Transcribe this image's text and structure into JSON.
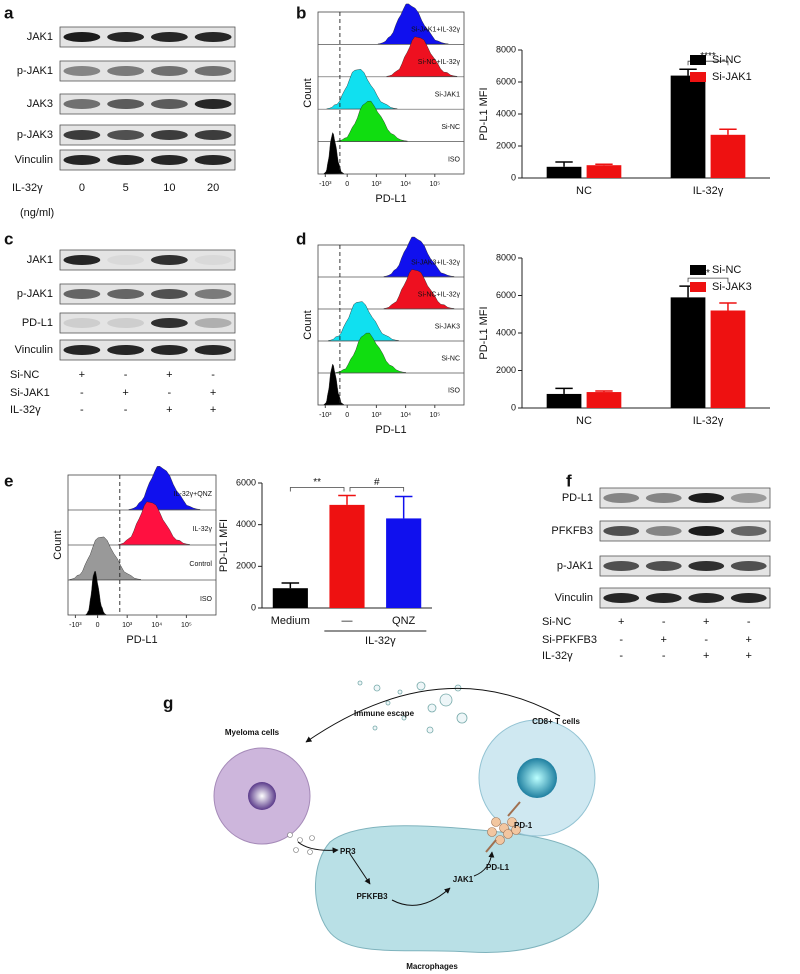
{
  "panels": {
    "a": {
      "label": "a",
      "blot_rows": [
        "JAK1",
        "p-JAK1",
        "JAK3",
        "p-JAK3",
        "Vinculin"
      ],
      "treatment": "IL-32γ",
      "doses": [
        "0",
        "5",
        "10",
        "20"
      ],
      "unit": "(ng/ml)"
    },
    "b": {
      "label": "b",
      "flow": {
        "row_labels": [
          "Si-JAK1+IL-32γ",
          "Si-NC+IL-32γ",
          "Si-JAK1",
          "Si-NC",
          "ISO"
        ],
        "colors": [
          "#1010ee",
          "#ee1020",
          "#10e0f0",
          "#10dd10",
          "#000000"
        ],
        "xticks": [
          "-10³",
          "0",
          "10³",
          "10⁴",
          "10⁵"
        ],
        "xlabel": "PD-L1",
        "ylabel": "Count"
      }
    },
    "c": {
      "label": "c",
      "blot_rows": [
        "JAK1",
        "p-JAK1",
        "PD-L1",
        "Vinculin"
      ],
      "conditions": [
        {
          "name": "Si-NC",
          "signs": [
            "+",
            "-",
            "+",
            "-"
          ]
        },
        {
          "name": "Si-JAK1",
          "signs": [
            "-",
            "+",
            "-",
            "+"
          ]
        },
        {
          "name": "IL-32γ",
          "signs": [
            "-",
            "-",
            "+",
            "+"
          ]
        }
      ]
    },
    "d": {
      "label": "d",
      "flow": {
        "row_labels": [
          "Si-JAK3+IL-32γ",
          "Si-NC+IL-32γ",
          "Si-JAK3",
          "Si-NC",
          "ISO"
        ],
        "colors": [
          "#1010ee",
          "#ee1020",
          "#10e0f0",
          "#10dd10",
          "#000000"
        ],
        "xticks": [
          "-10³",
          "0",
          "10³",
          "10⁴",
          "10⁵"
        ],
        "xlabel": "PD-L1",
        "ylabel": "Count"
      }
    },
    "e": {
      "label": "e",
      "flow": {
        "row_labels": [
          "IL-32γ+QNZ",
          "IL-32γ",
          "Control",
          "ISO"
        ],
        "colors": [
          "#1010ee",
          "#ff1040",
          "#999999",
          "#000000"
        ],
        "xticks": [
          "-10³",
          "0",
          "10³",
          "10⁴",
          "10⁵"
        ],
        "xlabel": "PD-L1",
        "ylabel": "Count"
      }
    },
    "f": {
      "label": "f",
      "blot_rows": [
        "PD-L1",
        "PFKFB3",
        "p-JAK1",
        "Vinculin"
      ],
      "conditions": [
        {
          "name": "Si-NC",
          "signs": [
            "+",
            "-",
            "+",
            "-"
          ]
        },
        {
          "name": "Si-PFKFB3",
          "signs": [
            "-",
            "+",
            "-",
            "+"
          ]
        },
        {
          "name": "IL-32γ",
          "signs": [
            "-",
            "-",
            "+",
            "+"
          ]
        }
      ]
    },
    "g": {
      "label": "g",
      "myeloma": "Myeloma cells",
      "escape": "Immune escape",
      "tcell": "CD8+ T cells",
      "pr3": "PR3",
      "pd1": "PD-1",
      "pdl1": "PD-L1",
      "pfkfb3": "PFKFB3",
      "jak1": "JAK1",
      "macrophage": "Macrophages"
    }
  },
  "chart_data": [
    {
      "type": "bar",
      "ylabel": "PD-L1 MFI",
      "categories": [
        "NC",
        "IL-32γ"
      ],
      "series": [
        {
          "name": "Si-NC",
          "color": "#000000",
          "values": [
            700,
            6400
          ],
          "errors": [
            300,
            400
          ]
        },
        {
          "name": "Si-JAK1",
          "color": "#ee1111",
          "values": [
            800,
            2700
          ],
          "errors": [
            60,
            350
          ]
        }
      ],
      "ylim": [
        0,
        8000
      ],
      "yticks": [
        0,
        2000,
        4000,
        6000,
        8000
      ],
      "annotations": [
        "****"
      ]
    },
    {
      "type": "bar",
      "ylabel": "PD-L1 MFI",
      "categories": [
        "NC",
        "IL-32γ"
      ],
      "series": [
        {
          "name": "Si-NC",
          "color": "#000000",
          "values": [
            750,
            5900
          ],
          "errors": [
            300,
            600
          ]
        },
        {
          "name": "Si-JAK3",
          "color": "#ee1111",
          "values": [
            850,
            5200
          ],
          "errors": [
            60,
            400
          ]
        }
      ],
      "ylim": [
        0,
        8000
      ],
      "yticks": [
        0,
        2000,
        4000,
        6000,
        8000
      ],
      "annotations": [
        "*"
      ]
    },
    {
      "type": "bar",
      "ylabel": "PD-L1 MFI",
      "categories": [
        "Medium",
        "—",
        "QNZ"
      ],
      "values": [
        950,
        4950,
        4300
      ],
      "errors": [
        250,
        450,
        1050
      ],
      "colors": [
        "#000000",
        "#ee1111",
        "#1010ee"
      ],
      "group_label": "IL-32γ",
      "ylim": [
        0,
        6000
      ],
      "yticks": [
        0,
        2000,
        4000,
        6000
      ],
      "annotations": [
        "**",
        "#"
      ]
    }
  ]
}
